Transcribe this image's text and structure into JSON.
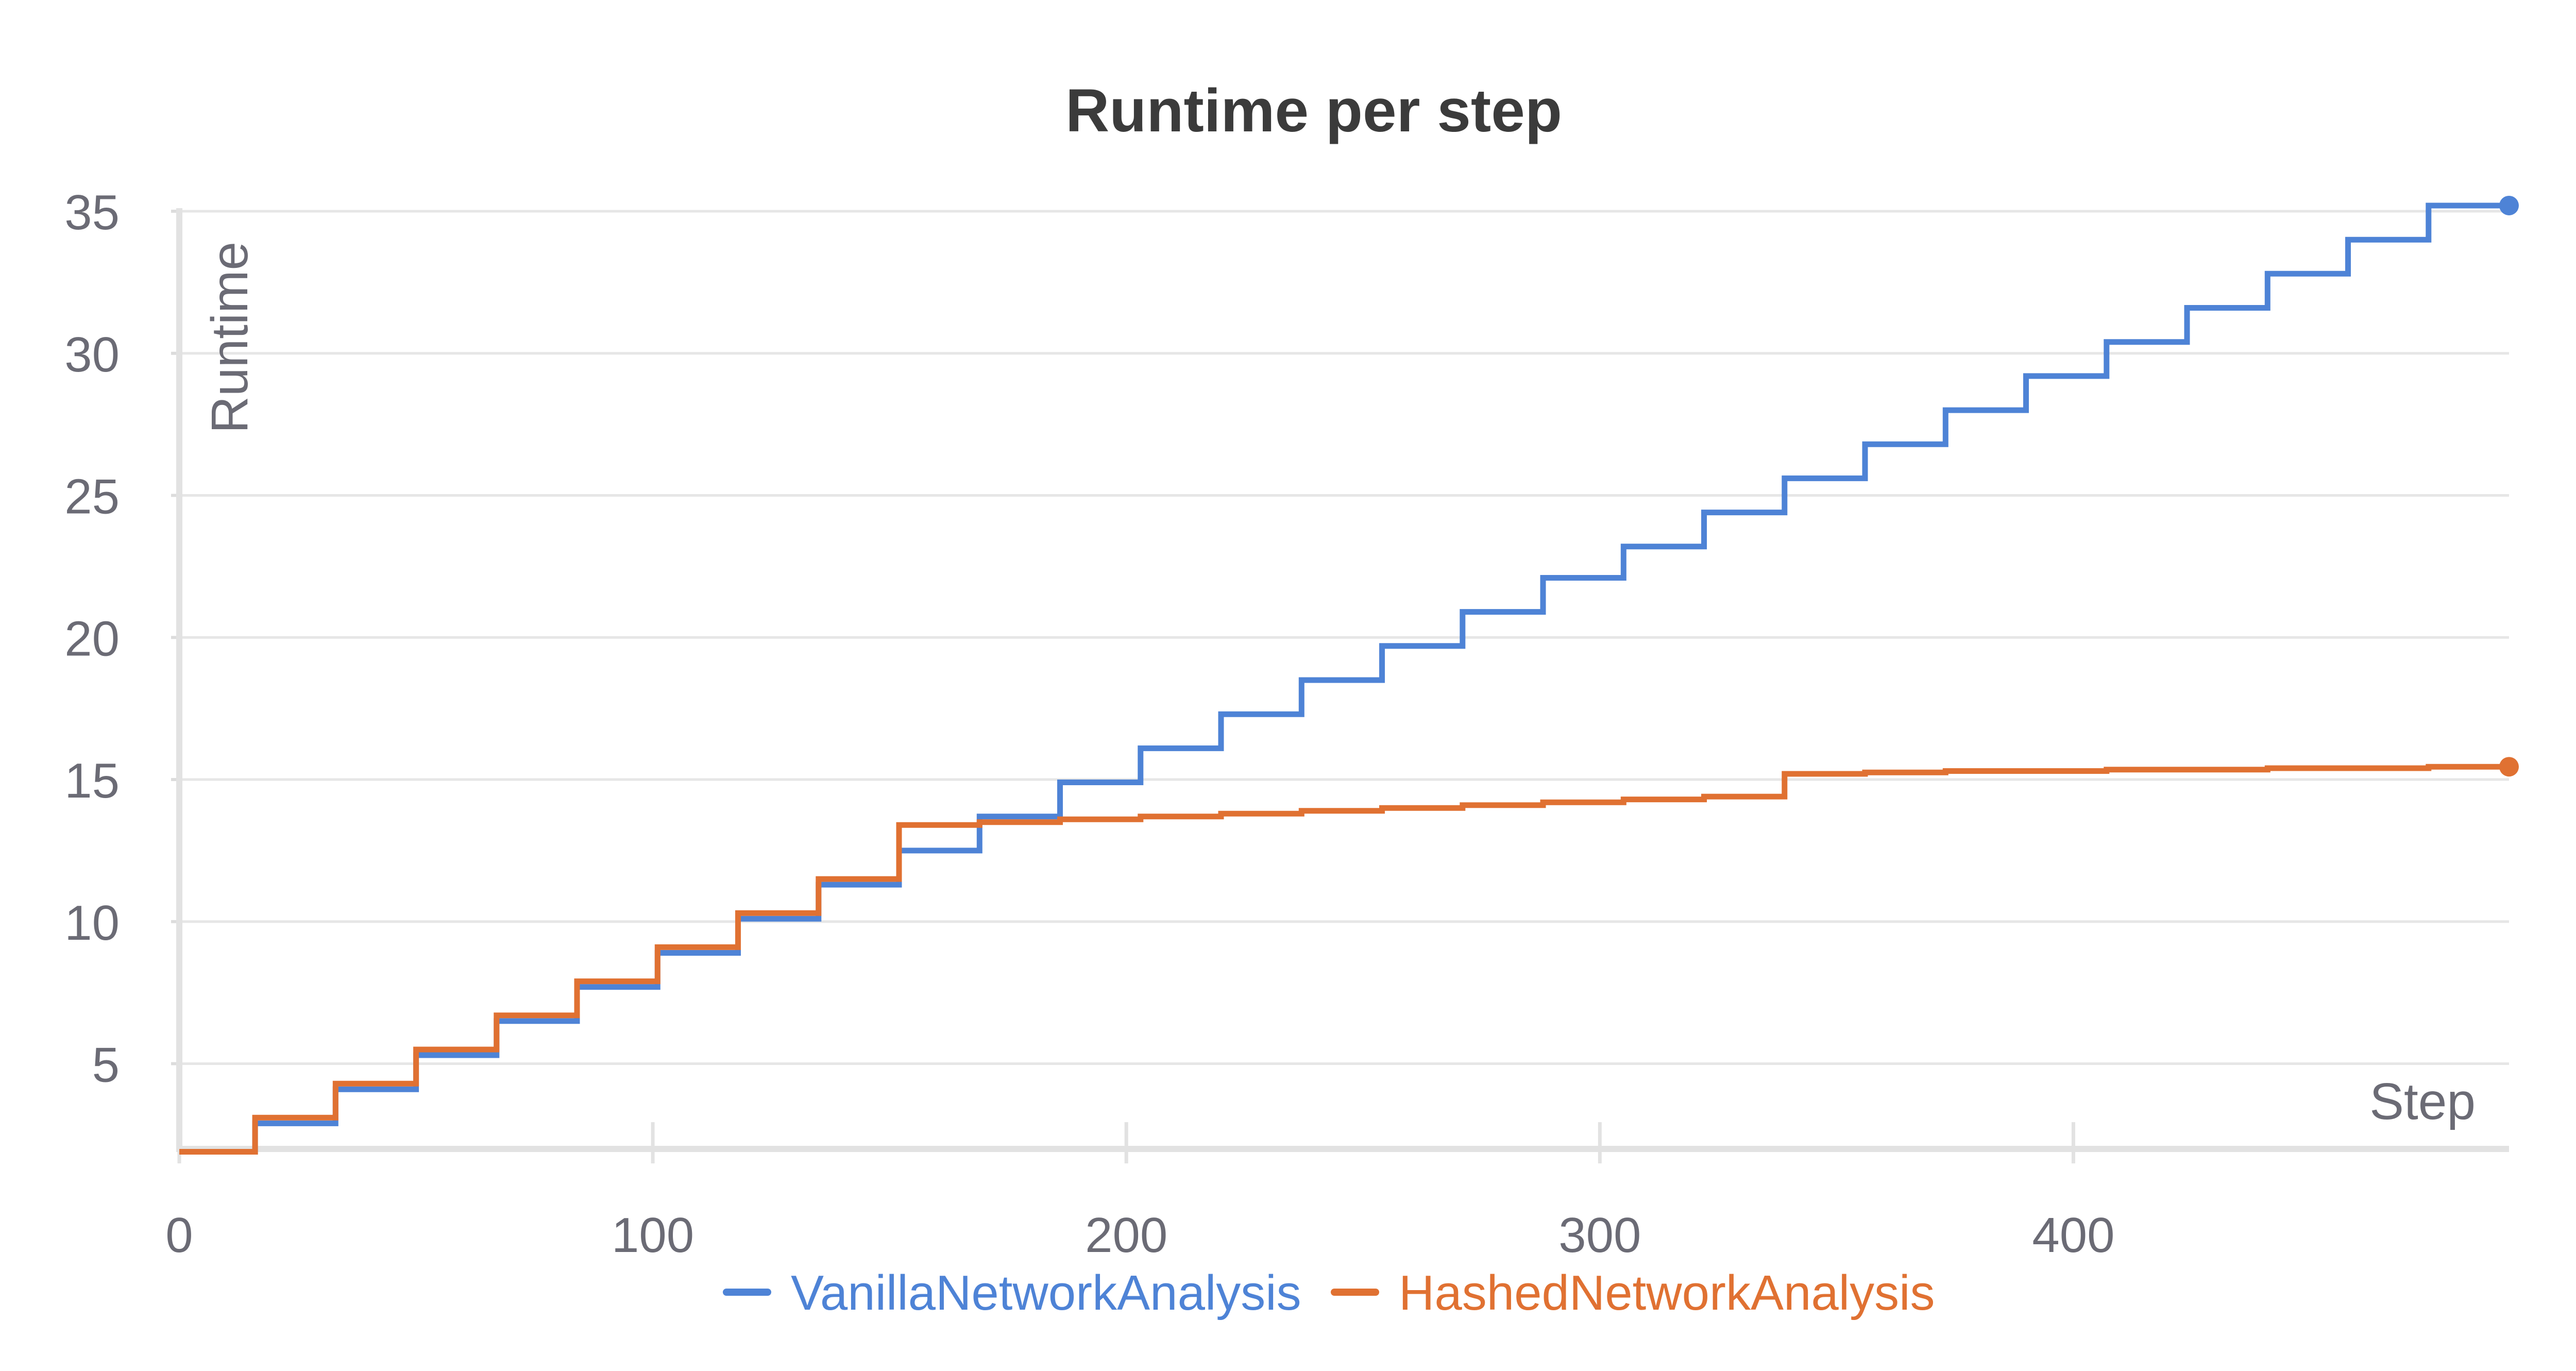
{
  "chart_data": {
    "type": "line",
    "title": "Runtime per step",
    "xlabel": "Step",
    "ylabel": "Runtime",
    "xlim": [
      0,
      492
    ],
    "ylim": [
      2,
      35
    ],
    "x_ticks": [
      0,
      100,
      200,
      300,
      400
    ],
    "y_ticks": [
      5,
      10,
      15,
      20,
      25,
      30,
      35
    ],
    "grid": "horizontal",
    "legend_position": "bottom-center",
    "line_style": "step",
    "series": [
      {
        "name": "VanillaNetworkAnalysis",
        "color": "#4e83d6",
        "x": [
          0,
          16,
          33,
          50,
          67,
          84,
          101,
          118,
          135,
          152,
          169,
          186,
          203,
          220,
          237,
          254,
          271,
          288,
          305,
          322,
          339,
          356,
          373,
          390,
          407,
          424,
          441,
          458,
          475,
          492
        ],
        "y": [
          1.9,
          2.9,
          4.1,
          5.3,
          6.5,
          7.7,
          8.9,
          10.1,
          11.3,
          12.5,
          13.7,
          14.9,
          16.1,
          17.3,
          18.5,
          19.7,
          20.9,
          22.1,
          23.2,
          24.4,
          25.6,
          26.8,
          28.0,
          29.2,
          30.4,
          31.6,
          32.8,
          34.0,
          35.2,
          35.2
        ]
      },
      {
        "name": "HashedNetworkAnalysis",
        "color": "#e07132",
        "x": [
          0,
          16,
          33,
          50,
          67,
          84,
          101,
          118,
          135,
          152,
          169,
          186,
          203,
          220,
          237,
          254,
          271,
          288,
          305,
          322,
          339,
          356,
          373,
          390,
          407,
          424,
          441,
          458,
          475,
          492
        ],
        "y": [
          1.9,
          3.1,
          4.3,
          5.5,
          6.7,
          7.9,
          9.1,
          10.3,
          11.5,
          13.4,
          13.5,
          13.6,
          13.7,
          13.8,
          13.9,
          14.0,
          14.1,
          14.2,
          14.3,
          14.4,
          15.2,
          15.25,
          15.3,
          15.3,
          15.35,
          15.35,
          15.4,
          15.4,
          15.45,
          15.45
        ]
      }
    ]
  }
}
